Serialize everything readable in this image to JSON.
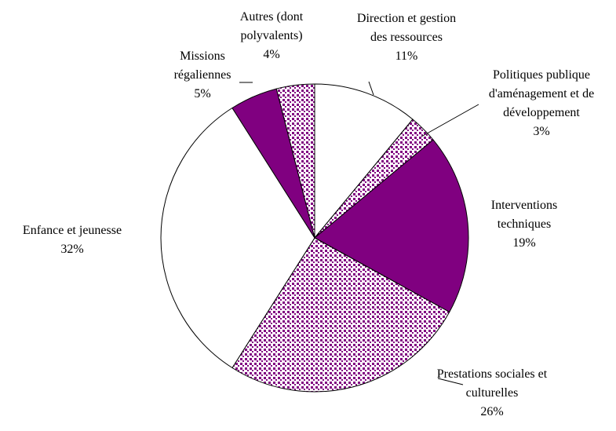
{
  "chart_data": {
    "type": "pie",
    "categories": [
      "Direction et gestion des ressources",
      "Politiques publique d'aménagement et de développement",
      "Interventions techniques",
      "Prestations sociales et culturelles",
      "Enfance et jeunesse",
      "Missions régaliennes",
      "Autres (dont polyvalents)"
    ],
    "values": [
      11,
      3,
      19,
      26,
      32,
      5,
      4
    ],
    "value_labels": [
      "11%",
      "3%",
      "19%",
      "26%",
      "32%",
      "5%",
      "4%"
    ],
    "colors": [
      "white",
      "dotted",
      "#800080",
      "dotted",
      "white",
      "#800080",
      "dotted"
    ]
  }
}
